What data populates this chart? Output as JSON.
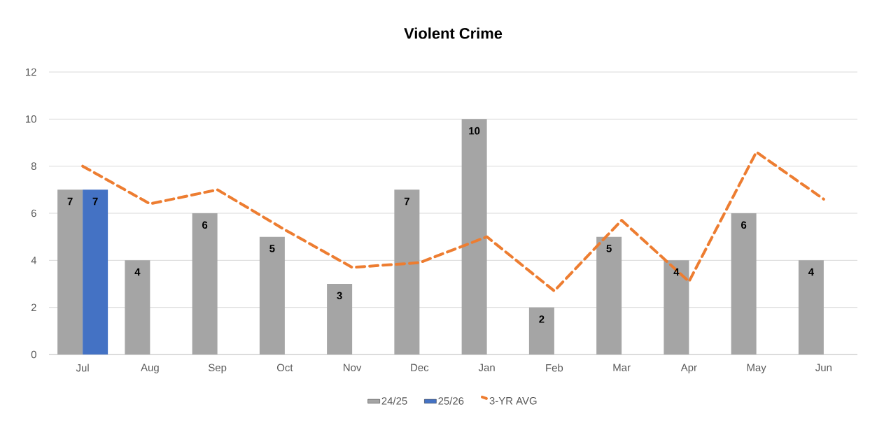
{
  "chart_data": {
    "type": "bar",
    "title": "Violent Crime",
    "categories": [
      "Jul",
      "Aug",
      "Sep",
      "Oct",
      "Nov",
      "Dec",
      "Jan",
      "Feb",
      "Mar",
      "Apr",
      "May",
      "Jun"
    ],
    "series": [
      {
        "name": "24/25",
        "color": "#a5a5a5",
        "values": [
          7,
          4,
          6,
          5,
          3,
          7,
          10,
          2,
          5,
          4,
          6,
          4
        ],
        "value_labels": [
          "7",
          "4",
          "6",
          "5",
          "3",
          "7",
          "10",
          "2",
          "5",
          "4",
          "6",
          "4"
        ]
      },
      {
        "name": "25/26",
        "color": "#4472c4",
        "values": [
          7,
          null,
          null,
          null,
          null,
          null,
          null,
          null,
          null,
          null,
          null,
          null
        ],
        "value_labels": [
          "7",
          null,
          null,
          null,
          null,
          null,
          null,
          null,
          null,
          null,
          null,
          null
        ]
      },
      {
        "name": "3-YR AVG",
        "type": "line",
        "line_style": "dashed",
        "color": "#ed7d31",
        "values": [
          8.0,
          6.4,
          7.0,
          5.3,
          3.7,
          3.9,
          5.0,
          2.7,
          5.7,
          3.1,
          8.6,
          6.6
        ]
      }
    ],
    "ylim": [
      0,
      12
    ],
    "yticks": [
      0,
      2,
      4,
      6,
      8,
      10,
      12
    ],
    "grid": "y",
    "legend": "bottom"
  }
}
